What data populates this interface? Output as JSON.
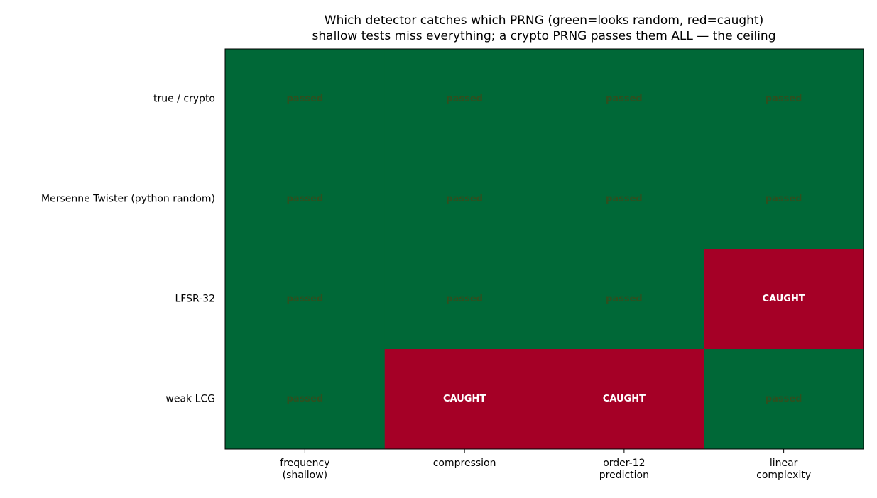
{
  "chart_data": {
    "type": "heatmap",
    "title": "Which detector catches which PRNG (green=looks random, red=caught)",
    "subtitle": "shallow tests miss everything; a crypto PRNG passes them ALL — the ceiling",
    "y_categories": [
      "true / crypto",
      "Mersenne Twister (python random)",
      "LFSR-32",
      "weak LCG"
    ],
    "x_categories": [
      [
        "frequency",
        "(shallow)"
      ],
      [
        "compression"
      ],
      [
        "order-12",
        "prediction"
      ],
      [
        "linear",
        "complexity"
      ]
    ],
    "values": [
      [
        0,
        0,
        0,
        0
      ],
      [
        0,
        0,
        0,
        0
      ],
      [
        0,
        0,
        0,
        1
      ],
      [
        0,
        1,
        1,
        0
      ]
    ],
    "value_labels": [
      [
        "passed",
        "passed",
        "passed",
        "passed"
      ],
      [
        "passed",
        "passed",
        "passed",
        "passed"
      ],
      [
        "passed",
        "passed",
        "passed",
        "CAUGHT"
      ],
      [
        "passed",
        "CAUGHT",
        "CAUGHT",
        "passed"
      ]
    ],
    "colors": [
      "#006837",
      "#a50026"
    ],
    "label_colors": [
      "#2f4f1f",
      "#ffffff"
    ]
  }
}
